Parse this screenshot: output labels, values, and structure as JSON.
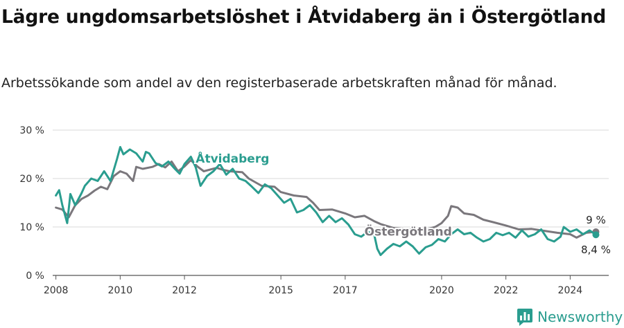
{
  "header": {
    "title": "Lägre ungdomsarbetslöshet i Åtvidaberg än i Östergötland",
    "subtitle": "Arbetssökande som andel av den registerbaserade arbetskraften månad för månad."
  },
  "brand": {
    "name": "Newsworthy",
    "icon": "newsworthy-logo-icon",
    "color": "#2a9d8f"
  },
  "chart_data": {
    "type": "line",
    "y_tick_labels": [
      "0 %",
      "10 %",
      "20 %",
      "30 %"
    ],
    "y_ticks": [
      0,
      10,
      20,
      30
    ],
    "ylim": [
      0,
      30
    ],
    "x_tick_labels": [
      "2008",
      "2010",
      "2012",
      "2015",
      "2017",
      "2020",
      "2022",
      "2024"
    ],
    "x_ticks": [
      2008,
      2010,
      2012,
      2015,
      2017,
      2020,
      2022,
      2024
    ],
    "xlim": [
      2007.9,
      2025.2
    ],
    "grid": "horizontal",
    "series": [
      {
        "name": "Östergötland",
        "color": "#7a777c",
        "end_label": "9 %",
        "points": [
          [
            2008.0,
            14.0
          ],
          [
            2008.2,
            13.6
          ],
          [
            2008.4,
            12.0
          ],
          [
            2008.6,
            14.5
          ],
          [
            2008.8,
            15.8
          ],
          [
            2009.0,
            16.5
          ],
          [
            2009.2,
            17.5
          ],
          [
            2009.4,
            18.3
          ],
          [
            2009.6,
            17.8
          ],
          [
            2009.8,
            20.5
          ],
          [
            2010.0,
            21.5
          ],
          [
            2010.2,
            21.0
          ],
          [
            2010.4,
            19.5
          ],
          [
            2010.5,
            22.4
          ],
          [
            2010.7,
            22.0
          ],
          [
            2011.0,
            22.4
          ],
          [
            2011.2,
            23.0
          ],
          [
            2011.4,
            22.3
          ],
          [
            2011.6,
            23.5
          ],
          [
            2011.8,
            21.5
          ],
          [
            2012.0,
            22.5
          ],
          [
            2012.2,
            23.8
          ],
          [
            2012.4,
            22.5
          ],
          [
            2012.6,
            21.5
          ],
          [
            2013.0,
            22.2
          ],
          [
            2013.2,
            21.8
          ],
          [
            2013.4,
            21.5
          ],
          [
            2013.8,
            21.3
          ],
          [
            2014.0,
            20.0
          ],
          [
            2014.4,
            18.5
          ],
          [
            2014.8,
            18.3
          ],
          [
            2015.0,
            17.2
          ],
          [
            2015.4,
            16.5
          ],
          [
            2015.8,
            16.2
          ],
          [
            2016.0,
            15.0
          ],
          [
            2016.2,
            13.5
          ],
          [
            2016.6,
            13.6
          ],
          [
            2017.0,
            12.8
          ],
          [
            2017.3,
            12.0
          ],
          [
            2017.6,
            12.3
          ],
          [
            2017.9,
            11.2
          ],
          [
            2018.1,
            10.6
          ],
          [
            2018.5,
            9.8
          ],
          [
            2019.0,
            9.5
          ],
          [
            2019.4,
            9.3
          ],
          [
            2019.8,
            10.0
          ],
          [
            2020.0,
            10.8
          ],
          [
            2020.2,
            12.3
          ],
          [
            2020.3,
            14.3
          ],
          [
            2020.5,
            14.0
          ],
          [
            2020.7,
            12.8
          ],
          [
            2021.0,
            12.5
          ],
          [
            2021.3,
            11.5
          ],
          [
            2021.6,
            11.0
          ],
          [
            2022.0,
            10.3
          ],
          [
            2022.4,
            9.5
          ],
          [
            2022.8,
            9.6
          ],
          [
            2023.2,
            9.2
          ],
          [
            2023.6,
            8.8
          ],
          [
            2024.0,
            8.5
          ],
          [
            2024.2,
            7.8
          ],
          [
            2024.5,
            8.8
          ],
          [
            2024.8,
            9.0
          ]
        ]
      },
      {
        "name": "Åtvidaberg",
        "color": "#2a9d8f",
        "end_label": "8,4 %",
        "points": [
          [
            2008.0,
            16.5
          ],
          [
            2008.1,
            17.6
          ],
          [
            2008.2,
            14.5
          ],
          [
            2008.35,
            10.8
          ],
          [
            2008.45,
            16.8
          ],
          [
            2008.6,
            14.5
          ],
          [
            2008.8,
            17.0
          ],
          [
            2008.9,
            18.5
          ],
          [
            2009.1,
            20.0
          ],
          [
            2009.3,
            19.5
          ],
          [
            2009.5,
            21.5
          ],
          [
            2009.7,
            19.5
          ],
          [
            2009.9,
            24.0
          ],
          [
            2010.0,
            26.5
          ],
          [
            2010.1,
            25.0
          ],
          [
            2010.3,
            26.0
          ],
          [
            2010.5,
            25.2
          ],
          [
            2010.7,
            23.5
          ],
          [
            2010.8,
            25.5
          ],
          [
            2010.9,
            25.2
          ],
          [
            2011.1,
            23.2
          ],
          [
            2011.3,
            22.5
          ],
          [
            2011.5,
            23.5
          ],
          [
            2011.7,
            22.0
          ],
          [
            2011.85,
            21.0
          ],
          [
            2012.0,
            23.0
          ],
          [
            2012.2,
            24.5
          ],
          [
            2012.35,
            22.3
          ],
          [
            2012.5,
            18.5
          ],
          [
            2012.7,
            20.5
          ],
          [
            2012.9,
            21.5
          ],
          [
            2013.1,
            23.0
          ],
          [
            2013.3,
            20.8
          ],
          [
            2013.5,
            22.0
          ],
          [
            2013.7,
            20.0
          ],
          [
            2013.9,
            19.5
          ],
          [
            2014.1,
            18.3
          ],
          [
            2014.3,
            17.0
          ],
          [
            2014.5,
            18.8
          ],
          [
            2014.7,
            18.0
          ],
          [
            2014.9,
            16.5
          ],
          [
            2015.1,
            15.0
          ],
          [
            2015.3,
            15.8
          ],
          [
            2015.5,
            13.0
          ],
          [
            2015.7,
            13.5
          ],
          [
            2015.9,
            14.5
          ],
          [
            2016.1,
            13.0
          ],
          [
            2016.3,
            11.0
          ],
          [
            2016.5,
            12.3
          ],
          [
            2016.7,
            11.0
          ],
          [
            2016.9,
            11.8
          ],
          [
            2017.1,
            10.5
          ],
          [
            2017.3,
            8.5
          ],
          [
            2017.5,
            8.0
          ],
          [
            2017.7,
            9.0
          ],
          [
            2017.9,
            8.5
          ],
          [
            2018.0,
            5.5
          ],
          [
            2018.1,
            4.2
          ],
          [
            2018.3,
            5.5
          ],
          [
            2018.5,
            6.5
          ],
          [
            2018.7,
            6.0
          ],
          [
            2018.9,
            7.0
          ],
          [
            2019.1,
            6.0
          ],
          [
            2019.3,
            4.5
          ],
          [
            2019.5,
            5.8
          ],
          [
            2019.7,
            6.3
          ],
          [
            2019.9,
            7.5
          ],
          [
            2020.1,
            7.0
          ],
          [
            2020.3,
            8.5
          ],
          [
            2020.5,
            9.5
          ],
          [
            2020.7,
            8.5
          ],
          [
            2020.9,
            8.8
          ],
          [
            2021.1,
            7.8
          ],
          [
            2021.3,
            7.0
          ],
          [
            2021.5,
            7.5
          ],
          [
            2021.7,
            8.8
          ],
          [
            2021.9,
            8.3
          ],
          [
            2022.1,
            8.8
          ],
          [
            2022.3,
            7.8
          ],
          [
            2022.5,
            9.3
          ],
          [
            2022.7,
            8.0
          ],
          [
            2022.9,
            8.5
          ],
          [
            2023.1,
            9.5
          ],
          [
            2023.3,
            7.5
          ],
          [
            2023.5,
            7.0
          ],
          [
            2023.7,
            8.0
          ],
          [
            2023.8,
            10.0
          ],
          [
            2024.0,
            9.0
          ],
          [
            2024.2,
            9.5
          ],
          [
            2024.4,
            8.5
          ],
          [
            2024.6,
            9.3
          ],
          [
            2024.8,
            8.4
          ]
        ]
      }
    ]
  }
}
